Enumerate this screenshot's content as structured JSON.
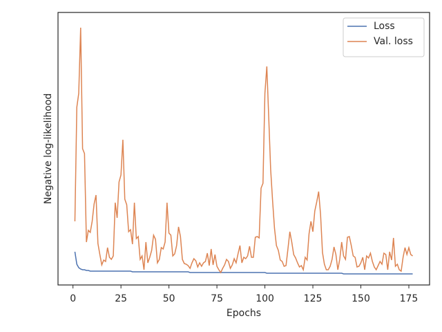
{
  "chart_data": {
    "type": "line",
    "xlabel": "Epochs",
    "ylabel": "Negative log-likelihood",
    "xlim": [
      -7.8,
      185.8
    ],
    "xticks": [
      0,
      25,
      50,
      75,
      100,
      125,
      150,
      175
    ],
    "ylim": [
      0,
      394
    ],
    "legend": "upper right",
    "x": [
      1,
      2,
      3,
      4,
      5,
      6,
      7,
      8,
      9,
      10,
      11,
      12,
      13,
      14,
      15,
      16,
      17,
      18,
      19,
      20,
      21,
      22,
      23,
      24,
      25,
      26,
      27,
      28,
      29,
      30,
      31,
      32,
      33,
      34,
      35,
      36,
      37,
      38,
      39,
      40,
      41,
      42,
      43,
      44,
      45,
      46,
      47,
      48,
      49,
      50,
      51,
      52,
      53,
      54,
      55,
      56,
      57,
      58,
      59,
      60,
      61,
      62,
      63,
      64,
      65,
      66,
      67,
      68,
      69,
      70,
      71,
      72,
      73,
      74,
      75,
      76,
      77,
      78,
      79,
      80,
      81,
      82,
      83,
      84,
      85,
      86,
      87,
      88,
      89,
      90,
      91,
      92,
      93,
      94,
      95,
      96,
      97,
      98,
      99,
      100,
      101,
      102,
      103,
      104,
      105,
      106,
      107,
      108,
      109,
      110,
      111,
      112,
      113,
      114,
      115,
      116,
      117,
      118,
      119,
      120,
      121,
      122,
      123,
      124,
      125,
      126,
      127,
      128,
      129,
      130,
      131,
      132,
      133,
      134,
      135,
      136,
      137,
      138,
      139,
      140,
      141,
      142,
      143,
      144,
      145,
      146,
      147,
      148,
      149,
      150,
      151,
      152,
      153,
      154,
      155,
      156,
      157,
      158,
      159,
      160,
      161,
      162,
      163,
      164,
      165,
      166,
      167,
      168,
      169,
      170,
      171,
      172,
      173,
      174,
      175,
      176,
      177
    ],
    "series": [
      {
        "name": "Loss",
        "color": "#4c72b0",
        "values": [
          48,
          30,
          25,
          23,
          22,
          22,
          21,
          21,
          20,
          20,
          20,
          20,
          20,
          20,
          20,
          20,
          20,
          20,
          20,
          20,
          20,
          20,
          20,
          20,
          20,
          20,
          20,
          20,
          20,
          20,
          19,
          19,
          19,
          19,
          19,
          19,
          19,
          19,
          19,
          19,
          19,
          19,
          19,
          19,
          19,
          19,
          19,
          19,
          19,
          19,
          19,
          19,
          19,
          19,
          19,
          19,
          19,
          19,
          19,
          19,
          18,
          18,
          18,
          18,
          18,
          18,
          18,
          18,
          18,
          18,
          18,
          18,
          18,
          18,
          18,
          18,
          18,
          18,
          18,
          18,
          18,
          18,
          18,
          18,
          18,
          18,
          18,
          18,
          18,
          18,
          18,
          18,
          18,
          18,
          18,
          18,
          18,
          18,
          18,
          18,
          17,
          17,
          17,
          17,
          17,
          17,
          17,
          17,
          17,
          17,
          17,
          17,
          17,
          17,
          17,
          17,
          17,
          17,
          17,
          17,
          17,
          17,
          17,
          17,
          17,
          17,
          17,
          17,
          17,
          17,
          17,
          17,
          17,
          17,
          17,
          17,
          17,
          17,
          17,
          17,
          16,
          16,
          16,
          16,
          16,
          16,
          16,
          16,
          16,
          16,
          16,
          16,
          16,
          16,
          16,
          16,
          16,
          16,
          16,
          16,
          16,
          16,
          16,
          16,
          16,
          16,
          16,
          16,
          16,
          16,
          16,
          16,
          16,
          16,
          16,
          16,
          16
        ]
      },
      {
        "name": "Val. loss",
        "color": "#dd8452",
        "values": [
          92,
          257,
          277,
          372,
          197,
          190,
          62,
          79,
          76,
          92,
          117,
          130,
          60,
          44,
          29,
          36,
          34,
          54,
          40,
          37,
          42,
          119,
          97,
          149,
          159,
          210,
          124,
          116,
          77,
          80,
          59,
          119,
          67,
          70,
          37,
          42,
          22,
          62,
          32,
          40,
          50,
          72,
          66,
          32,
          37,
          54,
          52,
          62,
          119,
          75,
          72,
          42,
          45,
          57,
          84,
          70,
          37,
          31,
          30,
          28,
          24,
          32,
          38,
          35,
          26,
          32,
          27,
          32,
          34,
          46,
          28,
          52,
          29,
          44,
          27,
          22,
          18,
          24,
          29,
          37,
          34,
          24,
          29,
          38,
          32,
          45,
          57,
          32,
          40,
          38,
          42,
          56,
          40,
          40,
          69,
          70,
          68,
          140,
          147,
          277,
          316,
          242,
          167,
          122,
          82,
          57,
          50,
          36,
          34,
          27,
          28,
          52,
          77,
          62,
          44,
          39,
          32,
          26,
          28,
          22,
          40,
          36,
          74,
          92,
          77,
          107,
          120,
          135,
          102,
          47,
          30,
          22,
          22,
          27,
          37,
          55,
          44,
          22,
          37,
          62,
          42,
          37,
          69,
          70,
          57,
          42,
          40,
          26,
          27,
          32,
          40,
          22,
          42,
          39,
          46,
          34,
          26,
          22,
          28,
          34,
          30,
          46,
          44,
          22,
          48,
          36,
          68,
          27,
          30,
          22,
          20,
          40,
          54,
          44,
          54,
          44,
          42
        ]
      }
    ]
  }
}
